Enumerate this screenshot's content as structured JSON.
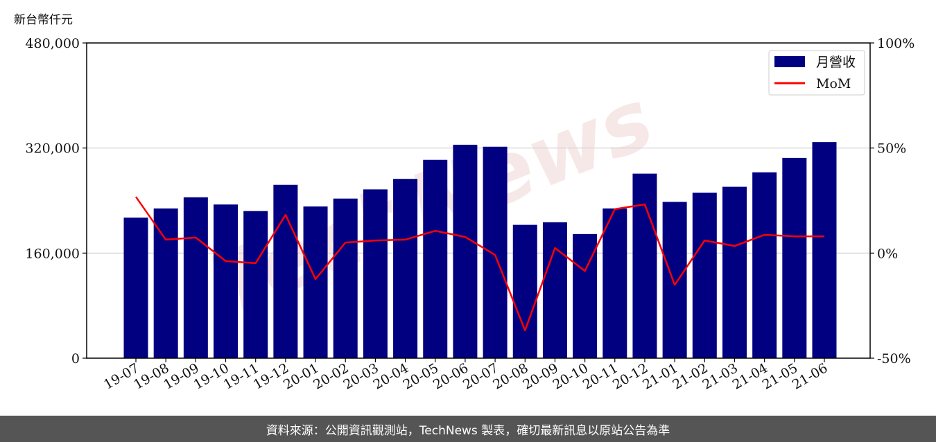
{
  "unit_label": "新台幣仟元",
  "footer": "資料來源：公開資訊觀測站，TechNews 製表，確切最新訊息以原站公告為準",
  "watermark": "TechNews",
  "chart_data": {
    "type": "bar+line",
    "categories": [
      "19-07",
      "19-08",
      "19-09",
      "19-10",
      "19-11",
      "19-12",
      "20-01",
      "20-02",
      "20-03",
      "20-04",
      "20-05",
      "20-06",
      "20-07",
      "20-08",
      "20-09",
      "20-10",
      "20-11",
      "20-12",
      "21-01",
      "21-02",
      "21-03",
      "21-04",
      "21-05",
      "21-06"
    ],
    "series": [
      {
        "name": "月營收",
        "type": "bar",
        "axis": "left",
        "color": "#000080",
        "values": [
          214000,
          228000,
          245000,
          234000,
          224000,
          264000,
          231000,
          243000,
          257000,
          273000,
          302000,
          325000,
          322000,
          203000,
          207000,
          189000,
          228000,
          281000,
          238000,
          252000,
          261000,
          283000,
          305000,
          329000
        ]
      },
      {
        "name": "MoM",
        "type": "line",
        "axis": "right",
        "color": "#ff0000",
        "values": [
          26.8,
          6.4,
          7.4,
          -3.8,
          -4.8,
          18.2,
          -12.4,
          5.0,
          6.0,
          6.4,
          10.6,
          7.7,
          -0.9,
          -36.8,
          2.4,
          -8.5,
          20.9,
          23.2,
          -15.1,
          6.0,
          3.4,
          8.7,
          8.0,
          8.0
        ]
      }
    ],
    "left_axis": {
      "ylim": [
        0,
        480000
      ],
      "ticks": [
        "0",
        "160,000",
        "320,000",
        "480,000"
      ],
      "tick_values": [
        0,
        160000,
        320000,
        480000
      ]
    },
    "right_axis": {
      "ylim": [
        -50,
        100
      ],
      "ticks": [
        "-50%",
        "0%",
        "50%",
        "100%"
      ],
      "tick_values": [
        -50,
        0,
        50,
        100
      ]
    },
    "grid": "horizontal",
    "legend": "top-right"
  }
}
